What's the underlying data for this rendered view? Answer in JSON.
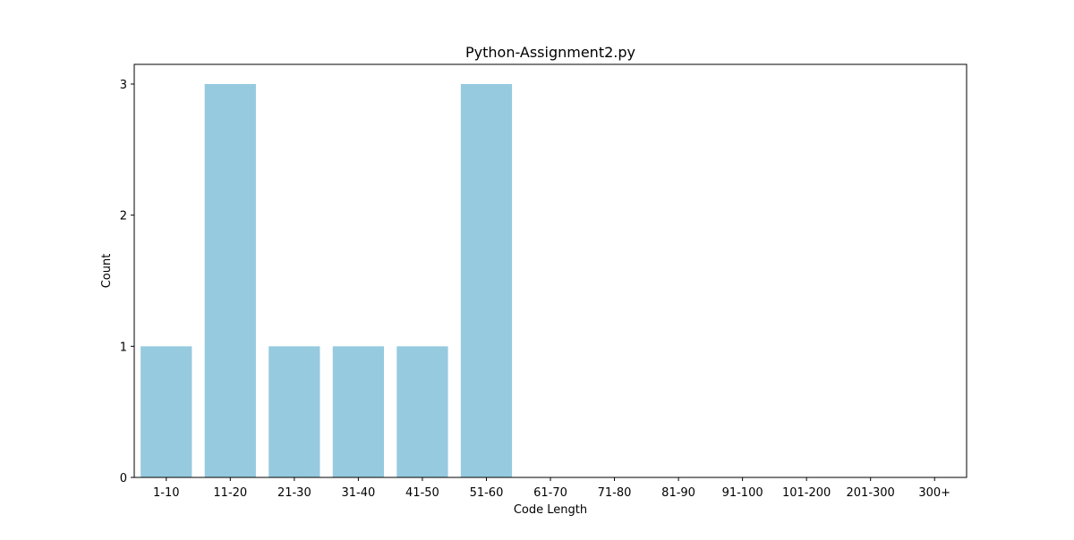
{
  "chart_data": {
    "type": "bar",
    "title": "Python-Assignment2.py",
    "xlabel": "Code Length",
    "ylabel": "Count",
    "categories": [
      "1-10",
      "11-20",
      "21-30",
      "31-40",
      "41-50",
      "51-60",
      "61-70",
      "71-80",
      "81-90",
      "91-100",
      "101-200",
      "201-300",
      "300+"
    ],
    "values": [
      1,
      3,
      1,
      1,
      1,
      3,
      0,
      0,
      0,
      0,
      0,
      0,
      0
    ],
    "yticks": [
      0,
      1,
      2,
      3
    ],
    "ylim": [
      0,
      3.15
    ],
    "bar_color": "#96cadf",
    "grid": false,
    "legend": "none"
  }
}
